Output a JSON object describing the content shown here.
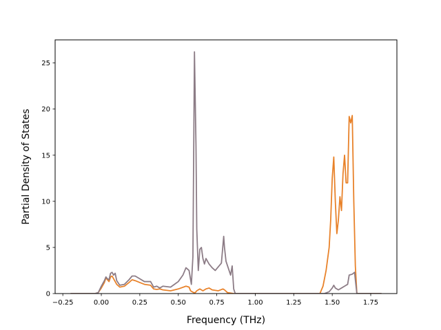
{
  "chart_data": {
    "type": "line",
    "title": "",
    "xlabel": "Frequency (THz)",
    "ylabel": "Partial Density of States",
    "xlim": [
      -0.3,
      1.92
    ],
    "ylim": [
      0,
      27.5
    ],
    "xticks": [
      -0.25,
      0.0,
      0.25,
      0.5,
      0.75,
      1.0,
      1.25,
      1.5,
      1.75
    ],
    "xtick_labels": [
      "−0.25",
      "0.00",
      "0.25",
      "0.50",
      "0.75",
      "1.00",
      "1.25",
      "1.50",
      "1.75"
    ],
    "yticks": [
      0,
      5,
      10,
      15,
      20,
      25
    ],
    "ytick_labels": [
      "0",
      "5",
      "10",
      "15",
      "20",
      "25"
    ],
    "grid": false,
    "legend": false,
    "series": [
      {
        "color": "#e8822a",
        "points": [
          [
            -0.2,
            0
          ],
          [
            -0.04,
            0
          ],
          [
            -0.02,
            0.1
          ],
          [
            0.0,
            0.6
          ],
          [
            0.02,
            1.2
          ],
          [
            0.03,
            1.7
          ],
          [
            0.04,
            1.5
          ],
          [
            0.05,
            1.3
          ],
          [
            0.06,
            1.8
          ],
          [
            0.07,
            1.9
          ],
          [
            0.08,
            1.6
          ],
          [
            0.1,
            1.0
          ],
          [
            0.12,
            0.7
          ],
          [
            0.15,
            0.8
          ],
          [
            0.18,
            1.2
          ],
          [
            0.2,
            1.5
          ],
          [
            0.22,
            1.4
          ],
          [
            0.25,
            1.2
          ],
          [
            0.28,
            1.0
          ],
          [
            0.32,
            0.9
          ],
          [
            0.34,
            0.5
          ],
          [
            0.36,
            0.45
          ],
          [
            0.38,
            0.5
          ],
          [
            0.4,
            0.4
          ],
          [
            0.45,
            0.3
          ],
          [
            0.5,
            0.5
          ],
          [
            0.55,
            0.8
          ],
          [
            0.57,
            0.7
          ],
          [
            0.58,
            0.3
          ],
          [
            0.6,
            0.1
          ],
          [
            0.61,
            0.1
          ],
          [
            0.62,
            0.3
          ],
          [
            0.64,
            0.5
          ],
          [
            0.66,
            0.3
          ],
          [
            0.68,
            0.5
          ],
          [
            0.7,
            0.6
          ],
          [
            0.72,
            0.4
          ],
          [
            0.76,
            0.3
          ],
          [
            0.79,
            0.5
          ],
          [
            0.8,
            0.4
          ],
          [
            0.82,
            0.1
          ],
          [
            0.86,
            0
          ],
          [
            1.42,
            0
          ],
          [
            1.44,
            0.8
          ],
          [
            1.46,
            2.5
          ],
          [
            1.48,
            5.0
          ],
          [
            1.49,
            8.0
          ],
          [
            1.5,
            12.5
          ],
          [
            1.51,
            14.8
          ],
          [
            1.52,
            10.0
          ],
          [
            1.53,
            6.5
          ],
          [
            1.54,
            8.0
          ],
          [
            1.55,
            10.5
          ],
          [
            1.56,
            9.0
          ],
          [
            1.57,
            13.0
          ],
          [
            1.58,
            15.0
          ],
          [
            1.59,
            12.0
          ],
          [
            1.6,
            12.0
          ],
          [
            1.61,
            19.2
          ],
          [
            1.62,
            18.5
          ],
          [
            1.63,
            19.3
          ],
          [
            1.64,
            10.0
          ],
          [
            1.65,
            3.0
          ],
          [
            1.66,
            0
          ],
          [
            1.82,
            0
          ]
        ]
      },
      {
        "color": "#8c7c86",
        "points": [
          [
            -0.2,
            0
          ],
          [
            -0.04,
            0
          ],
          [
            -0.02,
            0.1
          ],
          [
            0.0,
            0.8
          ],
          [
            0.02,
            1.4
          ],
          [
            0.03,
            1.8
          ],
          [
            0.04,
            1.6
          ],
          [
            0.05,
            1.5
          ],
          [
            0.06,
            2.2
          ],
          [
            0.07,
            2.3
          ],
          [
            0.08,
            2.0
          ],
          [
            0.09,
            2.2
          ],
          [
            0.1,
            1.4
          ],
          [
            0.12,
            0.9
          ],
          [
            0.15,
            1.0
          ],
          [
            0.18,
            1.5
          ],
          [
            0.2,
            1.9
          ],
          [
            0.22,
            1.9
          ],
          [
            0.25,
            1.6
          ],
          [
            0.28,
            1.3
          ],
          [
            0.32,
            1.3
          ],
          [
            0.34,
            0.7
          ],
          [
            0.36,
            0.8
          ],
          [
            0.38,
            0.6
          ],
          [
            0.4,
            0.8
          ],
          [
            0.45,
            0.7
          ],
          [
            0.5,
            1.3
          ],
          [
            0.53,
            2.0
          ],
          [
            0.55,
            2.8
          ],
          [
            0.57,
            2.5
          ],
          [
            0.585,
            1.0
          ],
          [
            0.595,
            4.0
          ],
          [
            0.605,
            26.2
          ],
          [
            0.615,
            16.0
          ],
          [
            0.62,
            7.0
          ],
          [
            0.63,
            2.5
          ],
          [
            0.64,
            4.8
          ],
          [
            0.65,
            5.0
          ],
          [
            0.66,
            3.8
          ],
          [
            0.67,
            3.2
          ],
          [
            0.68,
            3.8
          ],
          [
            0.7,
            3.2
          ],
          [
            0.72,
            2.8
          ],
          [
            0.74,
            2.5
          ],
          [
            0.76,
            2.9
          ],
          [
            0.78,
            3.3
          ],
          [
            0.795,
            6.2
          ],
          [
            0.8,
            5.0
          ],
          [
            0.81,
            3.5
          ],
          [
            0.83,
            2.5
          ],
          [
            0.84,
            2.0
          ],
          [
            0.85,
            3.0
          ],
          [
            0.86,
            0.5
          ],
          [
            0.87,
            0
          ],
          [
            1.45,
            0
          ],
          [
            1.48,
            0.2
          ],
          [
            1.5,
            0.6
          ],
          [
            1.51,
            0.9
          ],
          [
            1.52,
            0.6
          ],
          [
            1.54,
            0.4
          ],
          [
            1.56,
            0.6
          ],
          [
            1.58,
            0.8
          ],
          [
            1.6,
            1.0
          ],
          [
            1.61,
            2.0
          ],
          [
            1.63,
            2.1
          ],
          [
            1.645,
            2.3
          ],
          [
            1.65,
            1.5
          ],
          [
            1.66,
            0
          ],
          [
            1.82,
            0
          ]
        ]
      }
    ]
  }
}
